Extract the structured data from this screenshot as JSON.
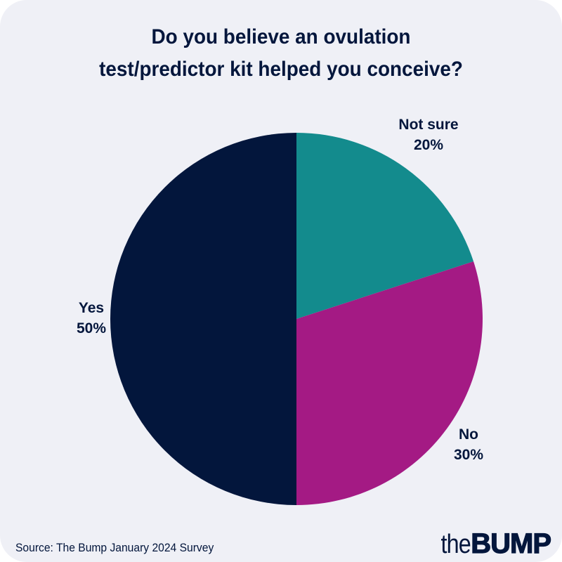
{
  "title": {
    "line1": "Do you believe an ovulation",
    "line2": "test/predictor kit helped you conceive?"
  },
  "labels": {
    "not_sure": {
      "name": "Not sure",
      "pct": "20%"
    },
    "no": {
      "name": "No",
      "pct": "30%"
    },
    "yes": {
      "name": "Yes",
      "pct": "50%"
    }
  },
  "footer": {
    "source": "Source: The Bump January 2024 Survey",
    "logo_the": "the",
    "logo_bump": "BUMP"
  },
  "colors": {
    "background": "#eff0f6",
    "text": "#03163c",
    "not_sure": "#138b8d",
    "no": "#a41a84",
    "yes": "#03163c"
  },
  "chart_data": {
    "type": "pie",
    "title": "Do you believe an ovulation test/predictor kit helped you conceive?",
    "categories": [
      "Not sure",
      "No",
      "Yes"
    ],
    "values": [
      20,
      30,
      50
    ],
    "unit": "%",
    "colors": [
      "#138b8d",
      "#a41a84",
      "#03163c"
    ],
    "start_angle": "12 o'clock, clockwise",
    "legend": "none (direct labels)",
    "source": "Source: The Bump January 2024 Survey"
  }
}
